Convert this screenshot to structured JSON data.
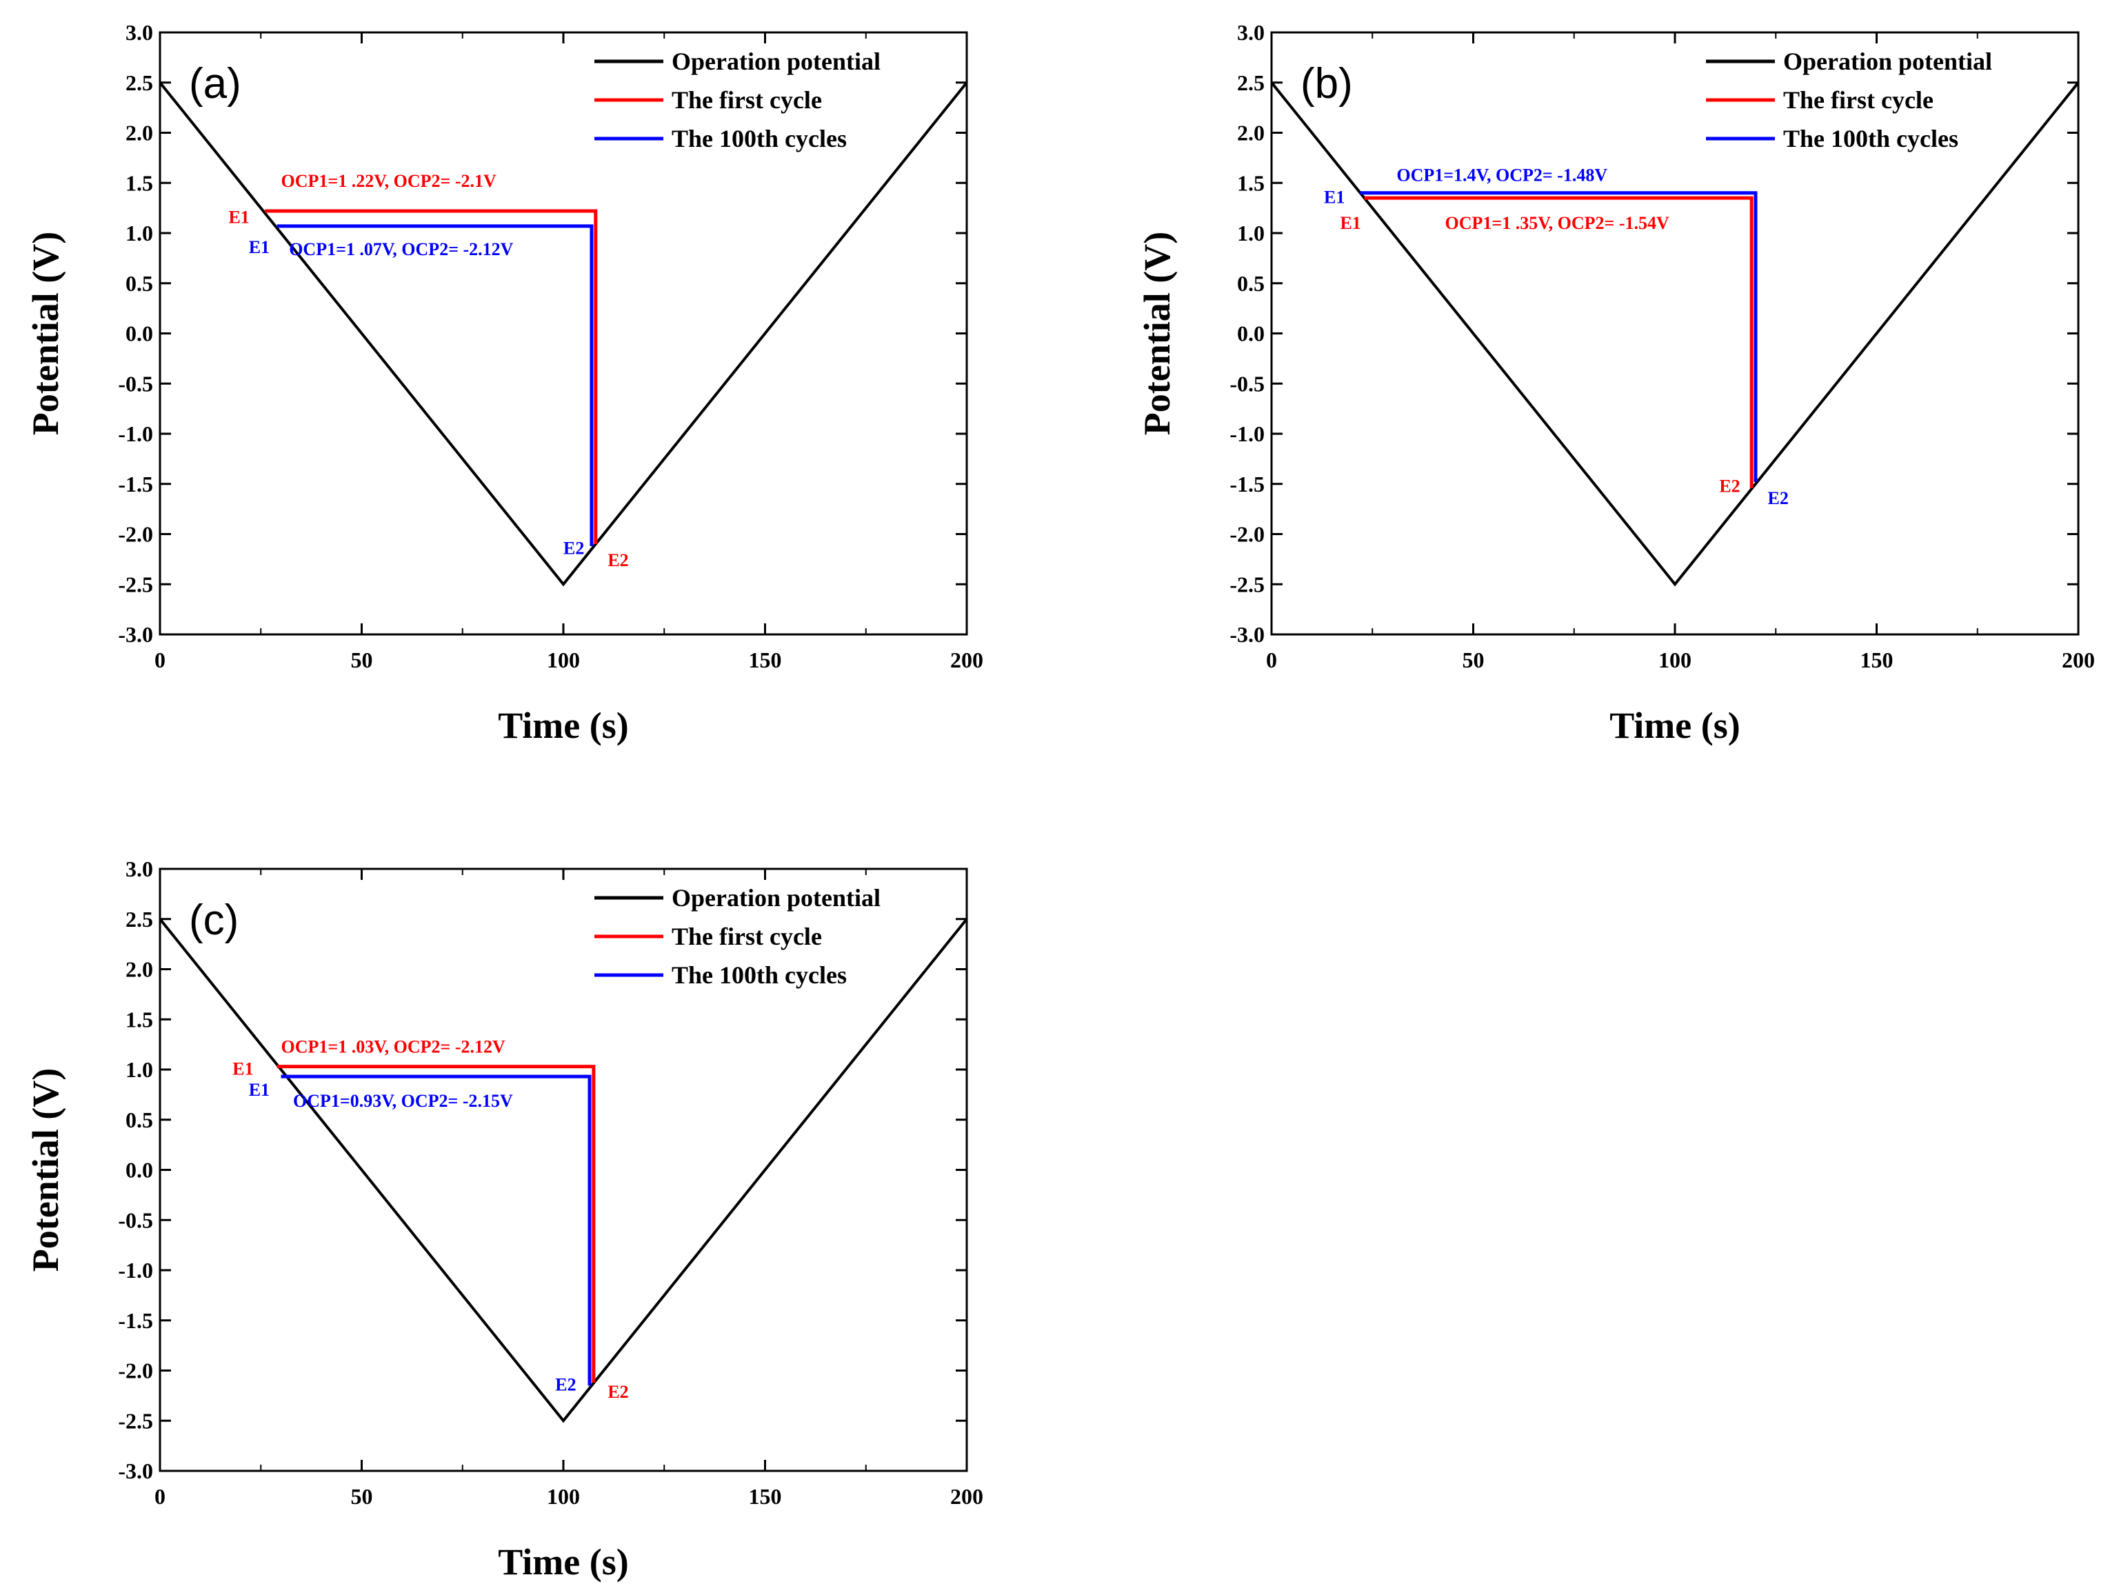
{
  "chart_data": [
    {
      "type": "line",
      "panel_label": "(a)",
      "xlabel": "Time (s)",
      "ylabel": "Potential (V)",
      "xlim": [
        0,
        200
      ],
      "ylim": [
        -3.0,
        3.0
      ],
      "x_ticks": [
        "0",
        "50",
        "100",
        "150",
        "200"
      ],
      "y_ticks": [
        "3.0",
        "2.5",
        "2.0",
        "1.5",
        "1.0",
        "0.5",
        "0.0",
        "-0.5",
        "-1.0",
        "-1.5",
        "-2.0",
        "-2.5",
        "-3.0"
      ],
      "legend": {
        "position": "top-right",
        "entries": [
          "Operation potential",
          "The first cycle",
          "The 100th cycles"
        ]
      },
      "colors": {
        "operation": "#000000",
        "first": "#ff0000",
        "hundredth": "#0000ff"
      },
      "series": [
        {
          "name": "Operation potential",
          "x": [
            0,
            100,
            200
          ],
          "y": [
            2.5,
            -2.5,
            2.5
          ]
        },
        {
          "name": "The first cycle",
          "x": [
            26,
            108,
            108
          ],
          "y": [
            1.22,
            1.22,
            -2.1
          ]
        },
        {
          "name": "The 100th cycles",
          "x": [
            29,
            107,
            107
          ],
          "y": [
            1.07,
            1.07,
            -2.12
          ]
        }
      ],
      "annotations": [
        {
          "text": "OCP1=1 .22V, OCP2= -2.1V",
          "series": "first",
          "x": 30,
          "y": 1.46
        },
        {
          "text": "OCP1=1 .07V, OCP2= -2.12V",
          "series": "hundredth",
          "x": 32,
          "y": 0.78
        },
        {
          "text": "E1",
          "series": "first",
          "x": 17,
          "y": 1.1
        },
        {
          "text": "E1",
          "series": "hundredth",
          "x": 22,
          "y": 0.8
        },
        {
          "text": "E2",
          "series": "hundredth",
          "x": 100,
          "y": -2.2
        },
        {
          "text": "E2",
          "series": "first",
          "x": 111,
          "y": -2.32
        }
      ]
    },
    {
      "type": "line",
      "panel_label": "(b)",
      "xlabel": "Time (s)",
      "ylabel": "Potential (V)",
      "xlim": [
        0,
        200
      ],
      "ylim": [
        -3.0,
        3.0
      ],
      "x_ticks": [
        "0",
        "50",
        "100",
        "150",
        "200"
      ],
      "y_ticks": [
        "3.0",
        "2.5",
        "2.0",
        "1.5",
        "1.0",
        "0.5",
        "0.0",
        "-0.5",
        "-1.0",
        "-1.5",
        "-2.0",
        "-2.5",
        "-3.0"
      ],
      "legend": {
        "position": "top-right",
        "entries": [
          "Operation potential",
          "The first cycle",
          "The 100th cycles"
        ]
      },
      "colors": {
        "operation": "#000000",
        "first": "#ff0000",
        "hundredth": "#0000ff"
      },
      "series": [
        {
          "name": "Operation potential",
          "x": [
            0,
            100,
            200
          ],
          "y": [
            2.5,
            -2.5,
            2.5
          ]
        },
        {
          "name": "The first cycle",
          "x": [
            23,
            119,
            119
          ],
          "y": [
            1.35,
            1.35,
            -1.54
          ]
        },
        {
          "name": "The 100th cycles",
          "x": [
            22,
            120,
            120
          ],
          "y": [
            1.4,
            1.4,
            -1.48
          ]
        }
      ],
      "annotations": [
        {
          "text": "OCP1=1.4V, OCP2= -1.48V",
          "series": "hundredth",
          "x": 31,
          "y": 1.52
        },
        {
          "text": "OCP1=1 .35V, OCP2= -1.54V",
          "series": "first",
          "x": 43,
          "y": 1.04
        },
        {
          "text": "E1",
          "series": "hundredth",
          "x": 13,
          "y": 1.3
        },
        {
          "text": "E1",
          "series": "first",
          "x": 17,
          "y": 1.04
        },
        {
          "text": "E2",
          "series": "first",
          "x": 111,
          "y": -1.58
        },
        {
          "text": "E2",
          "series": "hundredth",
          "x": 123,
          "y": -1.7
        }
      ]
    },
    {
      "type": "line",
      "panel_label": "(c)",
      "xlabel": "Time (s)",
      "ylabel": "Potential (V)",
      "xlim": [
        0,
        200
      ],
      "ylim": [
        -3.0,
        3.0
      ],
      "x_ticks": [
        "0",
        "50",
        "100",
        "150",
        "200"
      ],
      "y_ticks": [
        "3.0",
        "2.5",
        "2.0",
        "1.5",
        "1.0",
        "0.5",
        "0.0",
        "-0.5",
        "-1.0",
        "-1.5",
        "-2.0",
        "-2.5",
        "-3.0"
      ],
      "legend": {
        "position": "top-right",
        "entries": [
          "Operation potential",
          "The first cycle",
          "The 100th cycles"
        ]
      },
      "colors": {
        "operation": "#000000",
        "first": "#ff0000",
        "hundredth": "#0000ff"
      },
      "series": [
        {
          "name": "Operation potential",
          "x": [
            0,
            100,
            200
          ],
          "y": [
            2.5,
            -2.5,
            2.5
          ]
        },
        {
          "name": "The first cycle",
          "x": [
            29,
            107.5,
            107.5
          ],
          "y": [
            1.03,
            1.03,
            -2.12
          ]
        },
        {
          "name": "The 100th cycles",
          "x": [
            30,
            106.5,
            106.5
          ],
          "y": [
            0.93,
            0.93,
            -2.15
          ]
        }
      ],
      "annotations": [
        {
          "text": "OCP1=1 .03V, OCP2= -2.12V",
          "series": "first",
          "x": 30,
          "y": 1.17
        },
        {
          "text": "OCP1=0.93V, OCP2= -2.15V",
          "series": "hundredth",
          "x": 33,
          "y": 0.63
        },
        {
          "text": "E1",
          "series": "first",
          "x": 18,
          "y": 0.95
        },
        {
          "text": "E1",
          "series": "hundredth",
          "x": 22,
          "y": 0.74
        },
        {
          "text": "E2",
          "series": "hundredth",
          "x": 98,
          "y": -2.2
        },
        {
          "text": "E2",
          "series": "first",
          "x": 111,
          "y": -2.27
        }
      ]
    }
  ]
}
